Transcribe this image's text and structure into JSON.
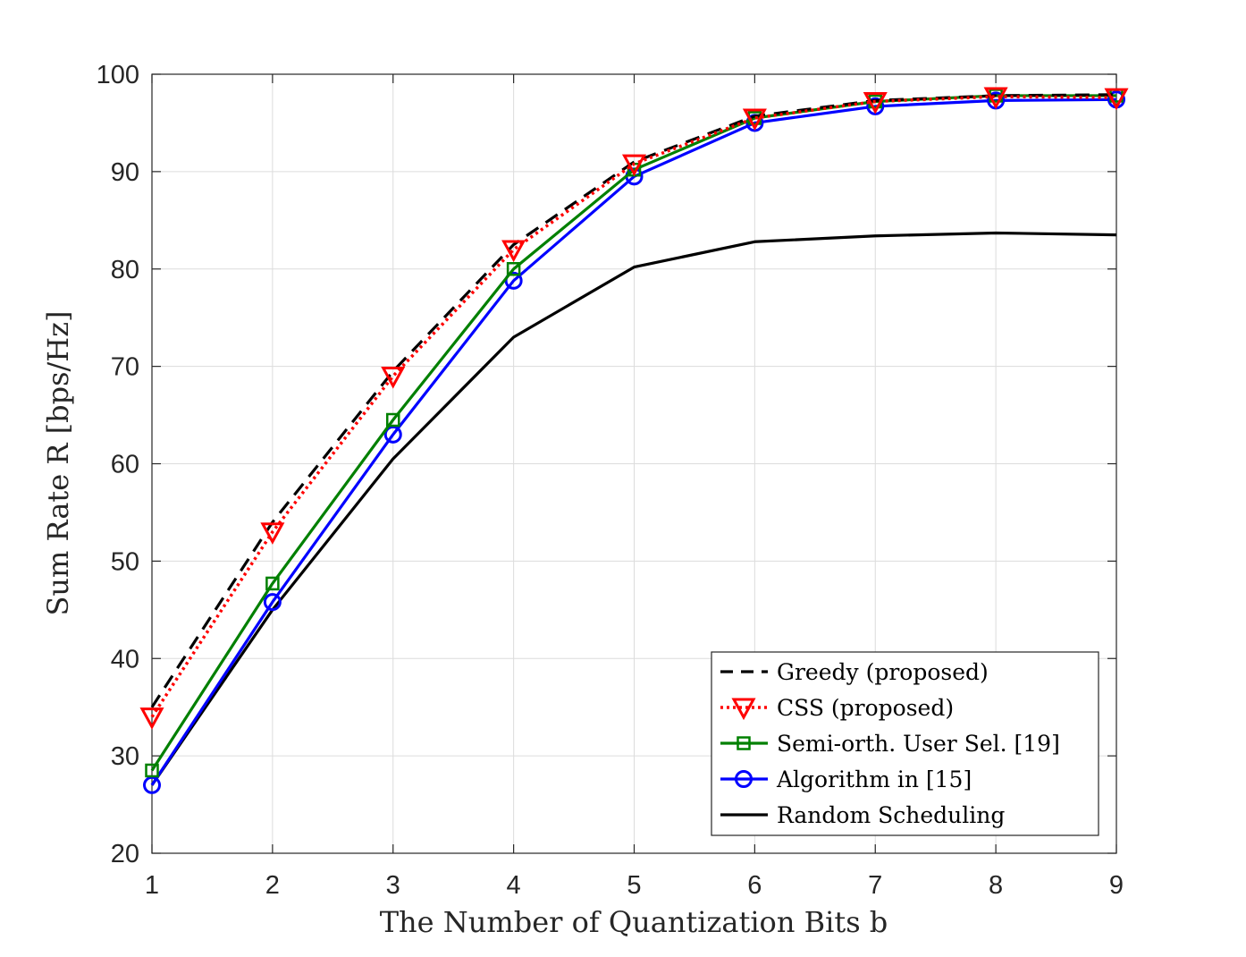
{
  "chart_data": {
    "type": "line",
    "title": "",
    "xlabel": "The Number of Quantization Bits b",
    "ylabel": "Sum Rate R [bps/Hz]",
    "x": [
      1,
      2,
      3,
      4,
      5,
      6,
      7,
      8,
      9
    ],
    "xlim": [
      1,
      9
    ],
    "ylim": [
      20,
      100
    ],
    "xticks": [
      1,
      2,
      3,
      4,
      5,
      6,
      7,
      8,
      9
    ],
    "yticks": [
      20,
      30,
      40,
      50,
      60,
      70,
      80,
      90,
      100
    ],
    "grid": true,
    "legend_position": "bottom-right",
    "series": [
      {
        "name": "Greedy (proposed)",
        "values": [
          35.0,
          54.0,
          69.5,
          82.5,
          91.0,
          95.7,
          97.3,
          97.8,
          97.9
        ],
        "color": "#000000",
        "line": "dashed",
        "marker": "none"
      },
      {
        "name": "CSS (proposed)",
        "values": [
          34.0,
          53.0,
          69.0,
          82.0,
          90.8,
          95.5,
          97.2,
          97.7,
          97.6
        ],
        "color": "#ff0000",
        "line": "dotted",
        "marker": "triangle-down"
      },
      {
        "name": "Semi-orth. User Sel. [19]",
        "values": [
          28.5,
          47.7,
          64.5,
          80.0,
          90.2,
          95.5,
          97.2,
          97.8,
          97.8
        ],
        "color": "#008000",
        "line": "solid",
        "marker": "square"
      },
      {
        "name": "Algorithm in [15]",
        "values": [
          27.0,
          45.8,
          63.0,
          78.8,
          89.5,
          95.0,
          96.7,
          97.3,
          97.4
        ],
        "color": "#0000ff",
        "line": "solid",
        "marker": "circle"
      },
      {
        "name": "Random Scheduling",
        "values": [
          27.0,
          45.0,
          60.5,
          73.0,
          80.2,
          82.8,
          83.4,
          83.7,
          83.5
        ],
        "color": "#000000",
        "line": "solid",
        "marker": "none"
      }
    ]
  }
}
